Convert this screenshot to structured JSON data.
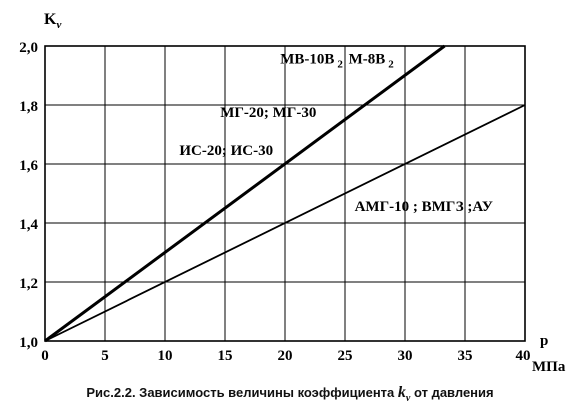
{
  "chart_data": {
    "type": "line",
    "title": "",
    "ylabel": "K",
    "ylabel_sub": "ν",
    "xlabel": "р",
    "xlabel_units": "МПа",
    "xlim": [
      0,
      40
    ],
    "ylim": [
      1.0,
      2.0
    ],
    "x_ticks": [
      0,
      5,
      10,
      15,
      20,
      25,
      30,
      35,
      40
    ],
    "y_ticks": [
      1.0,
      1.2,
      1.4,
      1.6,
      1.8,
      2.0
    ],
    "x_tick_labels": [
      "0",
      "5",
      "10",
      "15",
      "20",
      "25",
      "30",
      "35",
      "40"
    ],
    "y_tick_labels": [
      "1,0",
      "1,2",
      "1,4",
      "1,6",
      "1,8",
      "2,0"
    ],
    "grid": true,
    "series": [
      {
        "name": "",
        "x": [
          0,
          33.3
        ],
        "y": [
          1.0,
          2.0
        ],
        "bold": true
      },
      {
        "name": "",
        "x": [
          0,
          40
        ],
        "y": [
          1.0,
          1.8
        ],
        "bold": false
      }
    ],
    "annotations": [
      {
        "text": "МВ-10В",
        "sub": "2",
        "x": 19.6,
        "y": 1.94
      },
      {
        "text": "М-8В",
        "sub": "2",
        "x": 25.3,
        "y": 1.94
      },
      {
        "text": "МГ-20; МГ-30",
        "sub": "",
        "x": 14.6,
        "y": 1.76
      },
      {
        "text": "ИС-20; ИС-30",
        "sub": "",
        "x": 11.2,
        "y": 1.63
      },
      {
        "text": "АМГ-10 ; ВМГЗ ;АУ",
        "sub": "",
        "x": 25.8,
        "y": 1.44
      }
    ]
  },
  "caption": {
    "prefix": "Рис.2.2. Зависимость величины коэффициента",
    "symbol": "k",
    "symbol_sub": "ν",
    "suffix": "от давления"
  }
}
